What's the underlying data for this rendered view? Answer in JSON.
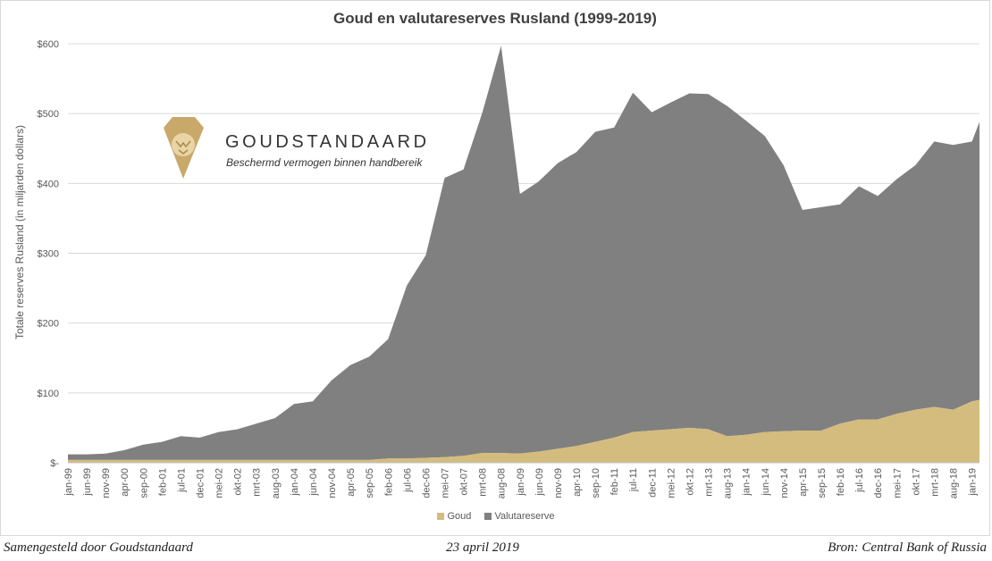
{
  "title": "Goud en valutareserves Rusland (1999-2019)",
  "brand": {
    "name": "GOUDSTANDAARD",
    "tagline": "Beschermd vermogen binnen handbereik"
  },
  "footer": {
    "left": "Samengesteld door Goudstandaard",
    "center": "23 april 2019",
    "right": "Bron: Central Bank of Russia"
  },
  "colors": {
    "goud": "#d4bc7f",
    "valuta": "#808080",
    "grid": "#d9d9d9",
    "logo": "#c8a96a"
  },
  "chart_data": {
    "type": "area",
    "stacked": true,
    "title": "Goud en valutareserves Rusland (1999-2019)",
    "ylabel": "Totale reserves Rusland (in miljarden dollars)",
    "ylim": [
      0,
      600
    ],
    "yticks": [
      0,
      100,
      200,
      300,
      400,
      500,
      600
    ],
    "ytick_labels": [
      "$-",
      "$100",
      "$200",
      "$300",
      "$400",
      "$500",
      "$600"
    ],
    "grid": true,
    "legend_position": "bottom",
    "x_start": "1999-01",
    "x_end": "2019-03",
    "xtick_labels": [
      "jan-99",
      "jun-99",
      "nov-99",
      "apr-00",
      "sep-00",
      "feb-01",
      "jul-01",
      "dec-01",
      "mei-02",
      "okt-02",
      "mrt-03",
      "aug-03",
      "jan-04",
      "jun-04",
      "nov-04",
      "apr-05",
      "sep-05",
      "feb-06",
      "jul-06",
      "dec-06",
      "mei-07",
      "okt-07",
      "mrt-08",
      "aug-08",
      "jan-09",
      "jun-09",
      "nov-09",
      "apr-10",
      "sep-10",
      "feb-11",
      "jul-11",
      "dec-11",
      "mei-12",
      "okt-12",
      "mrt-13",
      "aug-13",
      "jan-14",
      "jun-14",
      "nov-14",
      "apr-15",
      "sep-15",
      "feb-16",
      "jul-16",
      "dec-16",
      "mei-17",
      "okt-17",
      "mrt-18",
      "aug-18",
      "jan-19"
    ],
    "x": [
      "1999-01",
      "1999-06",
      "1999-11",
      "2000-04",
      "2000-09",
      "2001-02",
      "2001-07",
      "2001-12",
      "2002-05",
      "2002-10",
      "2003-03",
      "2003-08",
      "2004-01",
      "2004-06",
      "2004-11",
      "2005-04",
      "2005-09",
      "2006-02",
      "2006-07",
      "2006-12",
      "2007-05",
      "2007-10",
      "2008-03",
      "2008-08",
      "2009-01",
      "2009-06",
      "2009-11",
      "2010-04",
      "2010-09",
      "2011-02",
      "2011-07",
      "2011-12",
      "2012-05",
      "2012-10",
      "2013-03",
      "2013-08",
      "2014-01",
      "2014-06",
      "2014-11",
      "2015-04",
      "2015-09",
      "2016-02",
      "2016-07",
      "2016-12",
      "2017-05",
      "2017-10",
      "2018-03",
      "2018-08",
      "2019-01",
      "2019-03"
    ],
    "series": [
      {
        "name": "Goud",
        "values": [
          4,
          4,
          4,
          4,
          4,
          4,
          4,
          4,
          4,
          4,
          4,
          4,
          4,
          4,
          4,
          4,
          4,
          6,
          6,
          7,
          8,
          10,
          14,
          14,
          13,
          16,
          20,
          24,
          30,
          36,
          44,
          46,
          48,
          50,
          48,
          38,
          40,
          44,
          45,
          46,
          46,
          56,
          62,
          62,
          70,
          76,
          80,
          76,
          88,
          90
        ]
      },
      {
        "name": "Valutareserve",
        "values": [
          8,
          8,
          9,
          14,
          22,
          26,
          34,
          32,
          40,
          44,
          52,
          60,
          80,
          84,
          114,
          136,
          148,
          171,
          248,
          290,
          400,
          410,
          487,
          583,
          372,
          387,
          409,
          421,
          444,
          444,
          486,
          456,
          468,
          479,
          480,
          473,
          450,
          424,
          381,
          316,
          320,
          314,
          334,
          320,
          336,
          350,
          380,
          379,
          372,
          398
        ]
      }
    ]
  }
}
